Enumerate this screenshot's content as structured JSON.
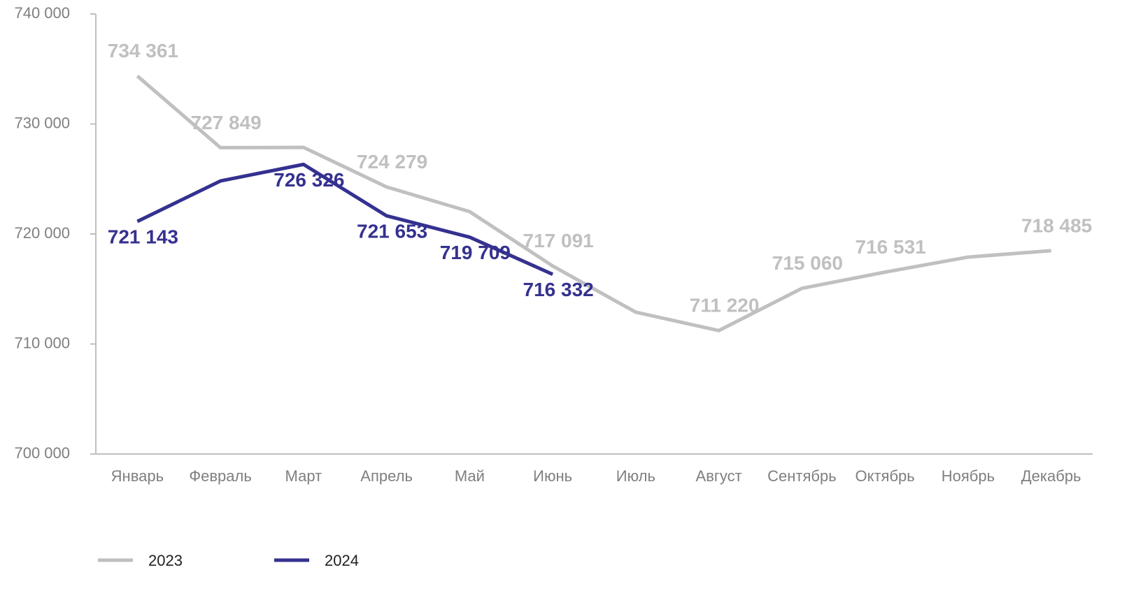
{
  "chart_data": {
    "type": "line",
    "categories": [
      "Январь",
      "Февраль",
      "Март",
      "Апрель",
      "Май",
      "Июнь",
      "Июль",
      "Август",
      "Сентябрь",
      "Октябрь",
      "Ноябрь",
      "Декабрь"
    ],
    "series": [
      {
        "name": "2023",
        "color": "#c0c0c0",
        "values": [
          734361,
          727849,
          727870,
          724279,
          722030,
          717091,
          712890,
          711220,
          715060,
          716531,
          717900,
          718485
        ],
        "value_labels": [
          "734 361",
          "727 849",
          null,
          "724 279",
          null,
          "717 091",
          null,
          "711 220",
          "715 060",
          "716 531",
          null,
          "718 485"
        ]
      },
      {
        "name": "2024",
        "color": "#35318f",
        "values": [
          721143,
          724820,
          726326,
          721653,
          719709,
          716332,
          null,
          null,
          null,
          null,
          null,
          null
        ],
        "value_labels": [
          "721 143",
          null,
          "726 326",
          "721 653",
          "719 709",
          "716 332",
          null,
          null,
          null,
          null,
          null,
          null
        ]
      }
    ],
    "ylim": [
      700000,
      740000
    ],
    "yticks": [
      {
        "value": 700000,
        "label": "700 000"
      },
      {
        "value": 710000,
        "label": "710 000"
      },
      {
        "value": 720000,
        "label": "720 000"
      },
      {
        "value": 730000,
        "label": "730 000"
      },
      {
        "value": 740000,
        "label": "740 000"
      }
    ],
    "grid": false
  }
}
